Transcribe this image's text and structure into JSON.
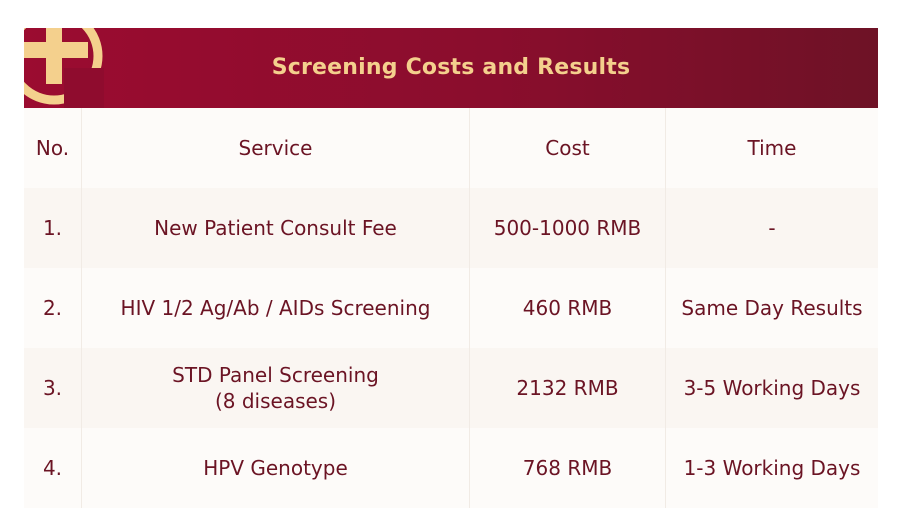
{
  "banner": {
    "title": "Screening Costs and Results",
    "background_color": "#8a0d2d",
    "title_color": "#f4d08d",
    "logo_icon": "cross-circle-logo"
  },
  "table": {
    "headers": {
      "no": "No.",
      "service": "Service",
      "cost": "Cost",
      "time": "Time"
    },
    "rows": [
      {
        "no": "1.",
        "service_line1": "New Patient Consult Fee",
        "service_line2": "",
        "cost": "500-1000 RMB",
        "time": "-"
      },
      {
        "no": "2.",
        "service_line1": "HIV 1/2 Ag/Ab / AIDs Screening",
        "service_line2": "",
        "cost": "460 RMB",
        "time": "Same Day Results"
      },
      {
        "no": "3.",
        "service_line1": "STD Panel Screening",
        "service_line2": "(8 diseases)",
        "cost": "2132 RMB",
        "time": "3-5 Working Days"
      },
      {
        "no": "4.",
        "service_line1": "HPV Genotype",
        "service_line2": "",
        "cost": "768 RMB",
        "time": "1-3 Working Days"
      }
    ]
  }
}
